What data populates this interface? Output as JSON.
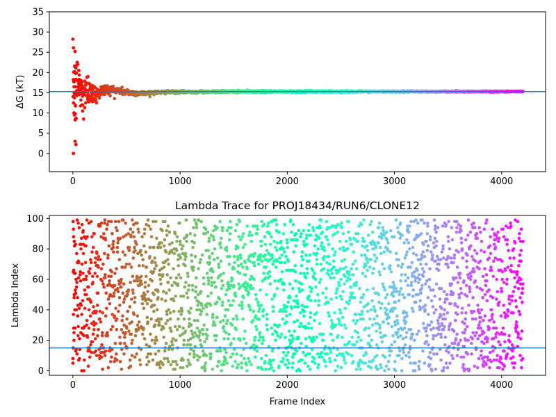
{
  "chart_data": [
    {
      "type": "scatter",
      "title": "",
      "xlabel": "",
      "ylabel": "ΔG (kT)",
      "xlim": [
        -220,
        4410
      ],
      "ylim": [
        -4.5,
        35
      ],
      "xticks": [
        0,
        1000,
        2000,
        3000,
        4000
      ],
      "xtick_labels": [
        "0",
        "1000",
        "2000",
        "3000",
        "4000"
      ],
      "yticks": [
        0,
        5,
        10,
        15,
        20,
        25,
        30,
        35
      ],
      "ytick_labels": [
        "0",
        "5",
        "10",
        "15",
        "20",
        "25",
        "30",
        "35"
      ],
      "colormap": "rainbow (red at frame 0 → violet at last frame)",
      "hline": {
        "y": 15.3,
        "color": "#1f77b4"
      },
      "n_frames": 4200,
      "early_points": [
        [
          5,
          26.1
        ],
        [
          20,
          25.2
        ],
        [
          8,
          20.1
        ],
        [
          15,
          20.2
        ],
        [
          25,
          19.8
        ],
        [
          40,
          22.5
        ],
        [
          45,
          22.0
        ],
        [
          55,
          20.5
        ],
        [
          12,
          15.0
        ],
        [
          18,
          14.6
        ],
        [
          10,
          10.0
        ],
        [
          14,
          9.5
        ],
        [
          22,
          9.8
        ],
        [
          28,
          8.6
        ],
        [
          20,
          8.3
        ],
        [
          30,
          8.7
        ],
        [
          20,
          3.0
        ],
        [
          28,
          2.2
        ],
        [
          5,
          0.0
        ],
        [
          50,
          18.0
        ],
        [
          60,
          15.5
        ],
        [
          70,
          17.0
        ],
        [
          75,
          13.2
        ],
        [
          85,
          12.0
        ],
        [
          90,
          10.5
        ],
        [
          100,
          8.5
        ],
        [
          110,
          11.3
        ],
        [
          120,
          12.5
        ],
        [
          130,
          18.8
        ],
        [
          140,
          19.0
        ],
        [
          150,
          17.3
        ],
        [
          160,
          13.8
        ],
        [
          170,
          14.2
        ],
        [
          180,
          12.8
        ],
        [
          190,
          13.6
        ],
        [
          200,
          16.5
        ],
        [
          210,
          15.0
        ],
        [
          220,
          12.5
        ]
      ],
      "convergence_series": {
        "frames": [
          0,
          100,
          200,
          300,
          400,
          500,
          600,
          800,
          1000,
          1500,
          2000,
          3000,
          4200
        ],
        "center": [
          17.0,
          15.5,
          14.6,
          15.8,
          15.6,
          15.2,
          14.8,
          15.1,
          15.2,
          15.3,
          15.3,
          15.3,
          15.3
        ],
        "spread": [
          9.0,
          4.0,
          2.4,
          1.4,
          1.1,
          0.9,
          0.6,
          0.45,
          0.35,
          0.3,
          0.25,
          0.2,
          0.15
        ]
      }
    },
    {
      "type": "scatter",
      "title": "Lambda Trace for PROJ18434/RUN6/CLONE12",
      "xlabel": "Frame Index",
      "ylabel": "Lambda Index",
      "xlim": [
        -220,
        4410
      ],
      "ylim": [
        -3,
        102
      ],
      "xticks": [
        0,
        1000,
        2000,
        3000,
        4000
      ],
      "xtick_labels": [
        "0",
        "1000",
        "2000",
        "3000",
        "4000"
      ],
      "yticks": [
        0,
        20,
        40,
        60,
        80,
        100
      ],
      "ytick_labels": [
        "0",
        "20",
        "40",
        "60",
        "80",
        "100"
      ],
      "colormap": "rainbow (red at frame 0 → violet at last frame)",
      "hline": {
        "y": 15,
        "color": "#1f77b4"
      },
      "n_frames": 4200,
      "lambda_range": [
        0,
        99
      ],
      "sample_points": [
        [
          0,
          5
        ],
        [
          2,
          98
        ],
        [
          5,
          93
        ],
        [
          8,
          66
        ],
        [
          10,
          20
        ],
        [
          12,
          50
        ],
        [
          15,
          82
        ],
        [
          50,
          97
        ],
        [
          100,
          60
        ],
        [
          150,
          40
        ],
        [
          200,
          90
        ],
        [
          300,
          10
        ],
        [
          500,
          70
        ],
        [
          800,
          30
        ],
        [
          1000,
          85
        ],
        [
          1500,
          55
        ],
        [
          2000,
          15
        ],
        [
          2500,
          95
        ],
        [
          3000,
          45
        ],
        [
          3500,
          75
        ],
        [
          4000,
          5
        ],
        [
          4180,
          60
        ]
      ]
    }
  ]
}
